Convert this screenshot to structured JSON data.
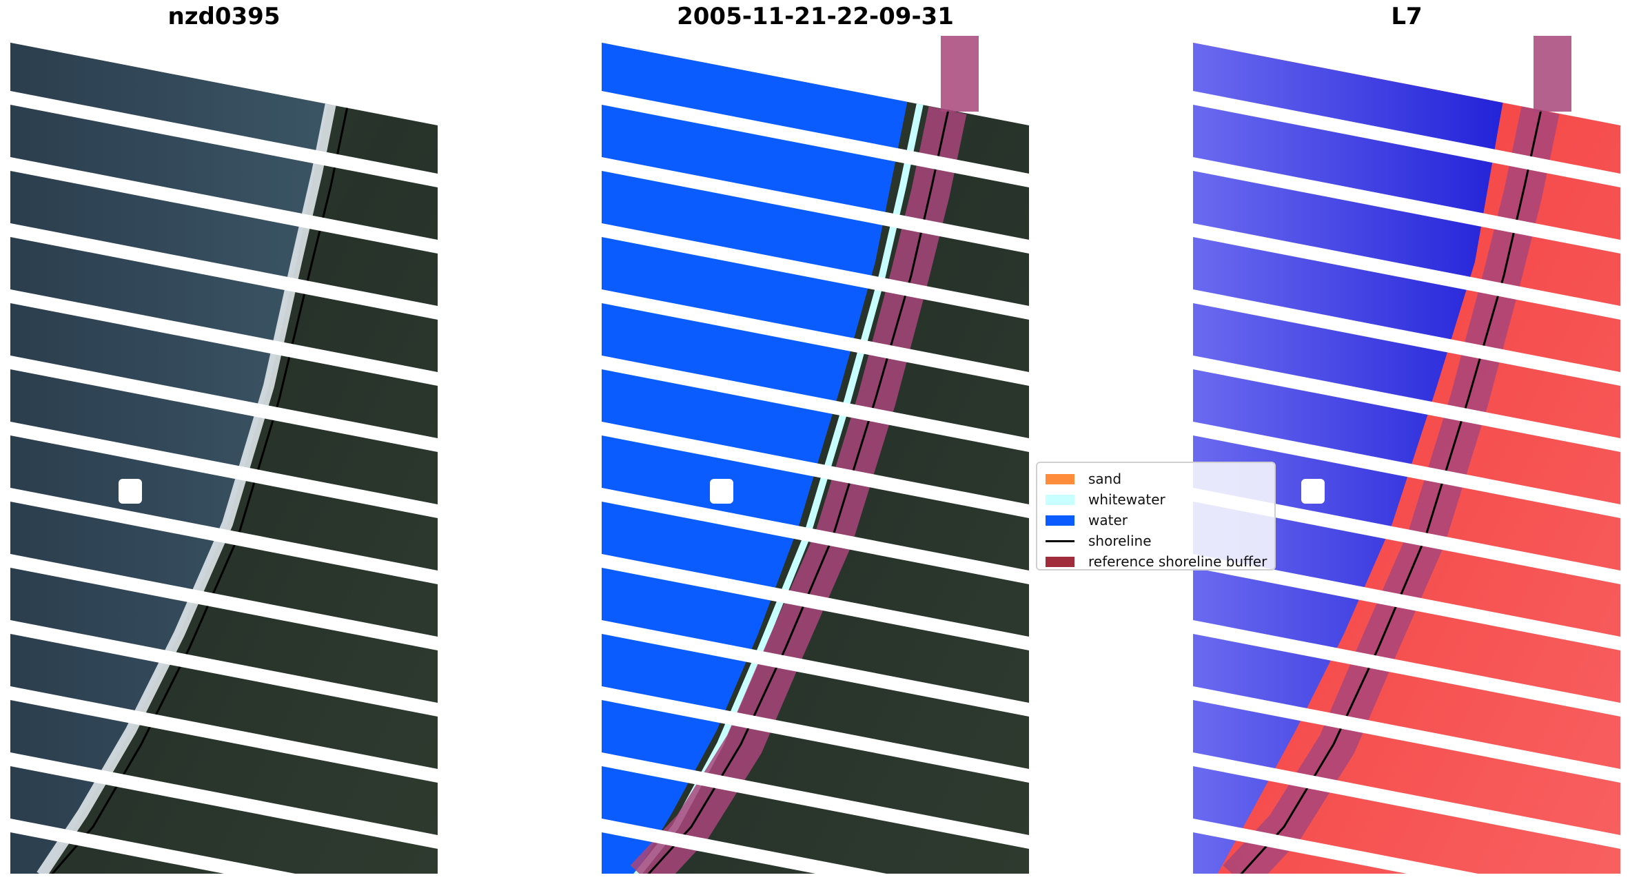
{
  "panels": [
    {
      "title": "nzd0395"
    },
    {
      "title": "2005-11-21-22-09-31"
    },
    {
      "title": "L7"
    }
  ],
  "legend": {
    "items": [
      {
        "label": "sand",
        "color": "#ff8c3a",
        "kind": "patch"
      },
      {
        "label": "whitewater",
        "color": "#c8ffff",
        "kind": "patch"
      },
      {
        "label": "water",
        "color": "#0a5cff",
        "kind": "patch"
      },
      {
        "label": "shoreline",
        "color": "#000000",
        "kind": "line"
      },
      {
        "label": "reference shoreline buffer",
        "color": "#a02c3c",
        "kind": "patch"
      }
    ]
  },
  "colors": {
    "land": "#2e3a30",
    "sea": "#34495a",
    "water_class": "#0a5cff",
    "buffer": "#a8457a",
    "index_water": "#2a2adf",
    "index_land": "#f02020",
    "stripe_gap": "#ffffff"
  }
}
